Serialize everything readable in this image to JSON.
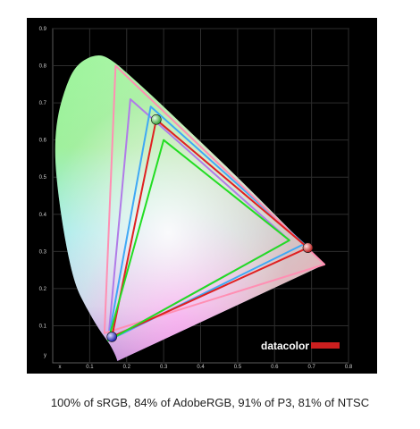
{
  "caption": "100% of sRGB, 84% of AdobeRGB, 91% of P3, 81% of NTSC",
  "brand": {
    "text": "datacolor"
  },
  "chart_data": {
    "type": "scatter",
    "x_axis_label": "x",
    "y_axis_label": "y",
    "xlim": [
      0,
      0.8
    ],
    "ylim": [
      0,
      0.9
    ],
    "x_ticks": [
      "x",
      "0.1",
      "0.2",
      "0.3",
      "0.4",
      "0.5",
      "0.6",
      "0.7",
      "0.8"
    ],
    "y_ticks": [
      "y",
      "0.1",
      "0.2",
      "0.3",
      "0.4",
      "0.5",
      "0.6",
      "0.7",
      "0.8",
      "0.9"
    ],
    "grid": true,
    "spectral_locus": [
      [
        0.175,
        0.005
      ],
      [
        0.17,
        0.02
      ],
      [
        0.155,
        0.05
      ],
      [
        0.125,
        0.09
      ],
      [
        0.09,
        0.15
      ],
      [
        0.06,
        0.21
      ],
      [
        0.035,
        0.32
      ],
      [
        0.015,
        0.45
      ],
      [
        0.005,
        0.56
      ],
      [
        0.01,
        0.65
      ],
      [
        0.03,
        0.73
      ],
      [
        0.06,
        0.8
      ],
      [
        0.11,
        0.83
      ],
      [
        0.15,
        0.825
      ],
      [
        0.23,
        0.755
      ],
      [
        0.3,
        0.69
      ],
      [
        0.4,
        0.595
      ],
      [
        0.5,
        0.5
      ],
      [
        0.6,
        0.4
      ],
      [
        0.7,
        0.3
      ],
      [
        0.735,
        0.265
      ]
    ],
    "series": [
      {
        "color": "#b07be8",
        "points": [
          [
            0.21,
            0.71
          ],
          [
            0.64,
            0.33
          ],
          [
            0.15,
            0.06
          ]
        ]
      },
      {
        "color": "#3fa9f5",
        "points": [
          [
            0.265,
            0.69
          ],
          [
            0.68,
            0.32
          ],
          [
            0.15,
            0.06
          ]
        ]
      },
      {
        "color": "#ff8fb3",
        "points": [
          [
            0.17,
            0.8
          ],
          [
            0.735,
            0.265
          ],
          [
            0.14,
            0.08
          ]
        ]
      },
      {
        "color": "#e02020",
        "points": [
          [
            0.28,
            0.655
          ],
          [
            0.69,
            0.31
          ],
          [
            0.16,
            0.07
          ]
        ]
      },
      {
        "color": "#22dd22",
        "points": [
          [
            0.3,
            0.6
          ],
          [
            0.64,
            0.33
          ],
          [
            0.15,
            0.06
          ]
        ]
      }
    ],
    "measured_points": [
      {
        "color": "#5ec45e",
        "xy": [
          0.28,
          0.655
        ]
      },
      {
        "color": "#e02020",
        "xy": [
          0.69,
          0.31
        ]
      },
      {
        "color": "#2a2ad0",
        "xy": [
          0.16,
          0.07
        ]
      }
    ]
  }
}
